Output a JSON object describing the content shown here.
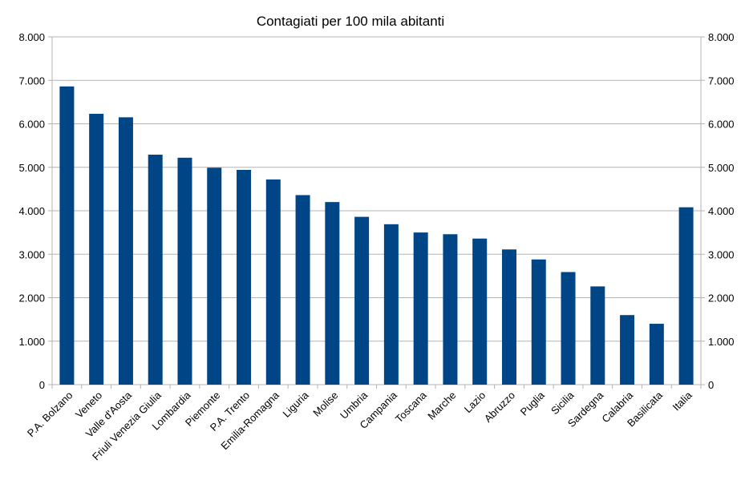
{
  "chart_data": {
    "type": "bar",
    "title": "Contagiati per 100 mila abitanti",
    "categories": [
      "P.A. Bolzano",
      "Veneto",
      "Valle d'Aosta",
      "Friuli Venezia Giulia",
      "Lombardia",
      "Piemonte",
      "P.A. Trento",
      "Emilia-Romagna",
      "Liguria",
      "Molise",
      "Umbria",
      "Campania",
      "Toscana",
      "Marche",
      "Lazio",
      "Abruzzo",
      "Puglia",
      "Sicilia",
      "Sardegna",
      "Calabria",
      "Basilicata",
      "Italia"
    ],
    "values": [
      6860,
      6230,
      6150,
      5290,
      5220,
      4990,
      4940,
      4720,
      4360,
      4200,
      3860,
      3690,
      3500,
      3460,
      3360,
      3110,
      2880,
      2590,
      2260,
      1600,
      1400,
      4080
    ],
    "ylim": [
      0,
      8000
    ],
    "y_ticks": [
      "0",
      "1.000",
      "2.000",
      "3.000",
      "4.000",
      "5.000",
      "6.000",
      "7.000",
      "8.000"
    ],
    "y_tick_values": [
      0,
      1000,
      2000,
      3000,
      4000,
      5000,
      6000,
      7000,
      8000
    ],
    "y_axis_both_sides": true,
    "grid": true,
    "bar_color": "#004586",
    "grid_color": "#b3b3b3",
    "xlabel": "",
    "ylabel": ""
  }
}
